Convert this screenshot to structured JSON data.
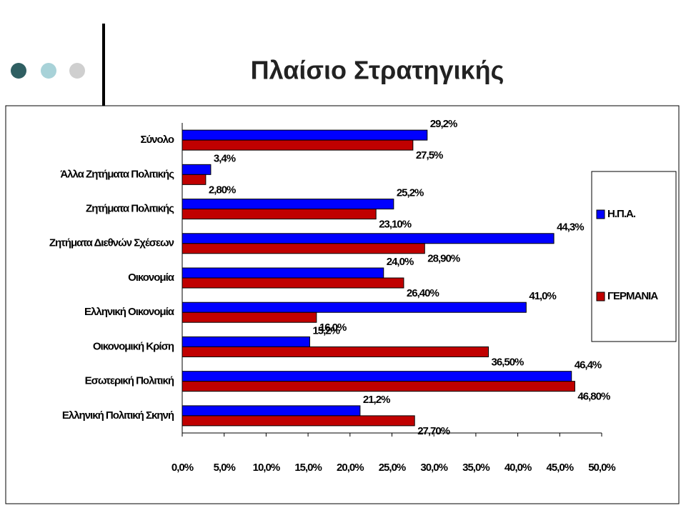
{
  "chart_data": {
    "type": "hbar",
    "title": "Πλαίσιο Στρατηγικής",
    "categories": [
      "Σύνολο",
      "Άλλα Ζητήματα Πολιτικής",
      "Ζητήματα Πολιτικής",
      "Ζητήματα Διεθνών Σχέσεων",
      "Οικονομία",
      "Ελληνική Οικονομία",
      "Οικονομική Κρίση",
      "Εσωτερική Πολιτική",
      "Ελληνική Πολιτική Σκηνή"
    ],
    "series": [
      {
        "name": "Η.Π.Α.",
        "color": "#0000ff",
        "values": [
          29.2,
          3.4,
          25.2,
          44.3,
          24.0,
          41.0,
          15.2,
          46.4,
          21.2
        ],
        "value_labels": [
          "29,2%",
          "3,4%",
          "25,2%",
          "44,3%",
          "24,0%",
          "41,0%",
          "15,2%",
          "46,4%",
          "21,2%"
        ]
      },
      {
        "name": "ΓΕΡΜΑΝΙΑ",
        "color": "#c00000",
        "values": [
          27.5,
          2.8,
          23.1,
          28.9,
          26.4,
          16.0,
          36.5,
          46.8,
          27.7
        ],
        "value_labels": [
          "27,5%",
          "2,80%",
          "23,10%",
          "28,90%",
          "26,40%",
          "16,0%",
          "36,50%",
          "46,80%",
          "27,70%"
        ]
      }
    ],
    "xlim": [
      0,
      50
    ],
    "xticks": [
      {
        "value": 0,
        "label": "0,0%"
      },
      {
        "value": 5,
        "label": "5,0%"
      },
      {
        "value": 10,
        "label": "10,0%"
      },
      {
        "value": 15,
        "label": "15,0%"
      },
      {
        "value": 20,
        "label": "20,0%"
      },
      {
        "value": 25,
        "label": "25,0%"
      },
      {
        "value": 30,
        "label": "30,0%"
      },
      {
        "value": 35,
        "label": "35,0%"
      },
      {
        "value": 40,
        "label": "40,0%"
      },
      {
        "value": 45,
        "label": "45,0%"
      },
      {
        "value": 50,
        "label": "50,0%"
      }
    ],
    "legend": "right"
  }
}
